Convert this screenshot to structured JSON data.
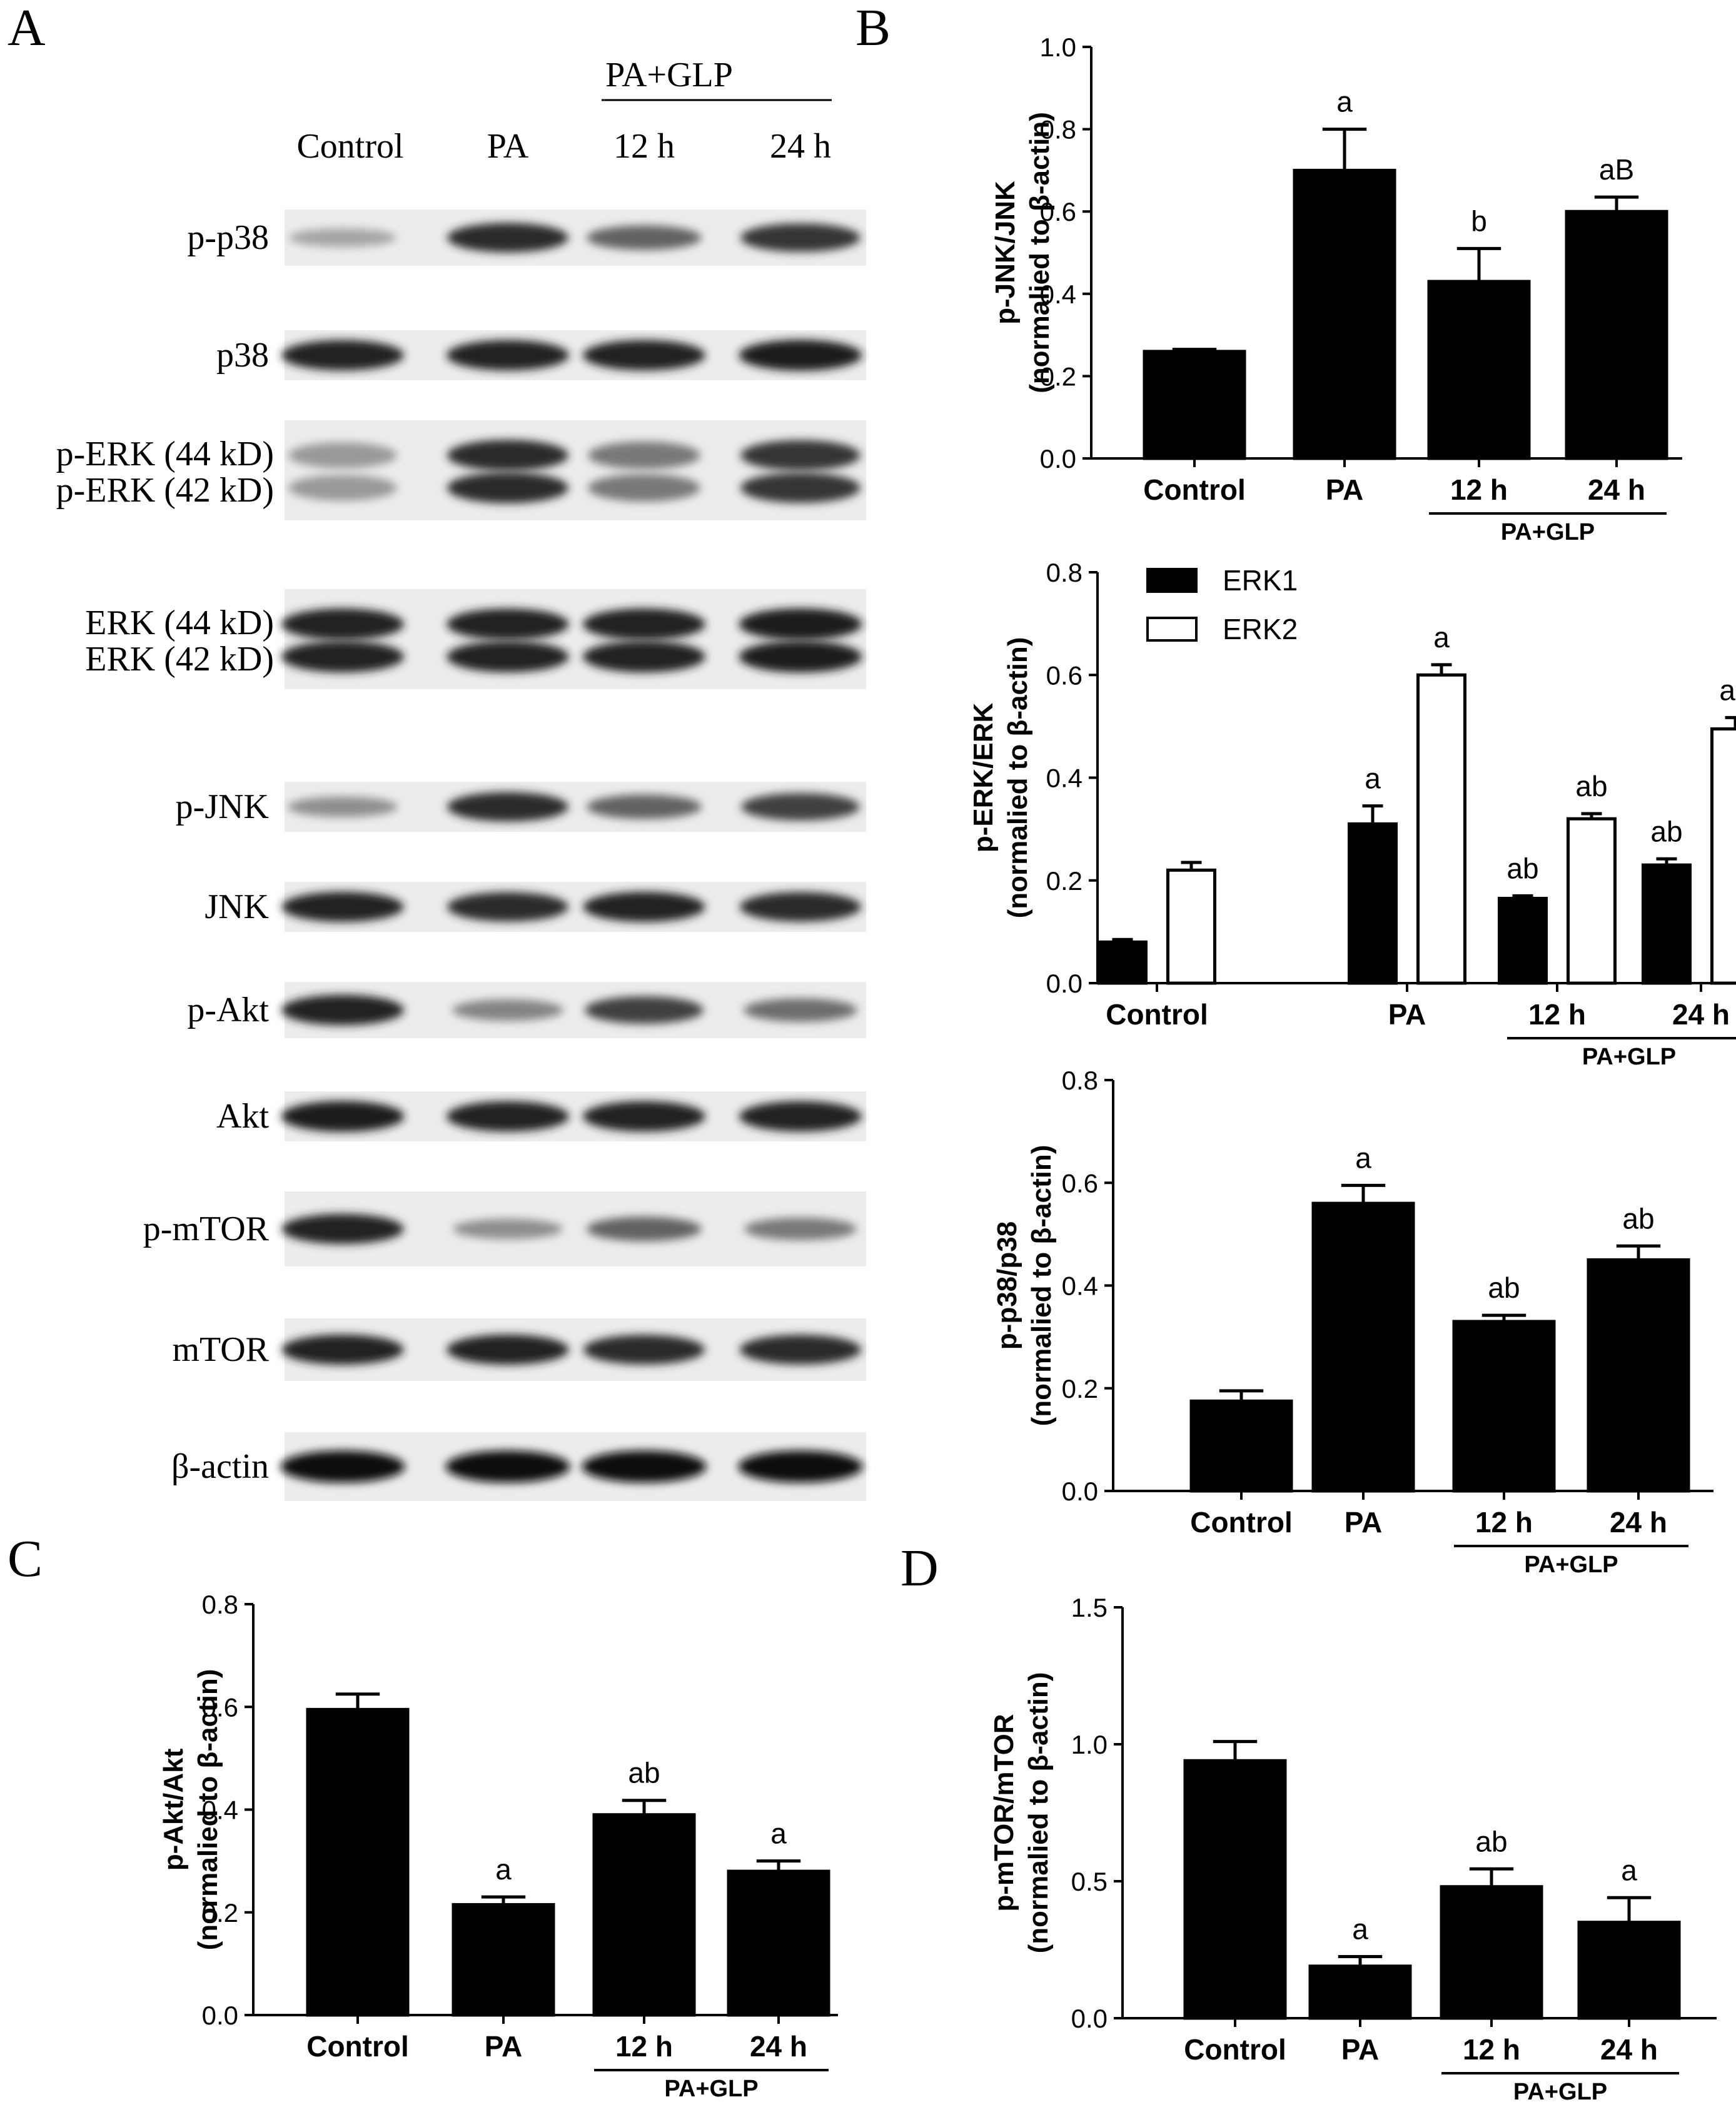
{
  "panels": {
    "A": "A",
    "B": "B",
    "C": "C",
    "D": "D"
  },
  "western_blot": {
    "group_label": "PA+GLP",
    "lanes": [
      "Control",
      "PA",
      "12 h",
      "24 h"
    ],
    "blots": [
      {
        "labels": [
          "p-p38"
        ],
        "intensity": [
          0.3,
          0.85,
          0.6,
          0.8
        ],
        "doublet": false
      },
      {
        "labels": [
          "p38"
        ],
        "intensity": [
          0.9,
          0.9,
          0.9,
          0.92
        ],
        "doublet": false
      },
      {
        "labels": [
          "p-ERK (44 kD)",
          "p-ERK (42 kD)"
        ],
        "intensity": [
          0.35,
          0.85,
          0.5,
          0.8
        ],
        "doublet": true
      },
      {
        "labels": [
          "ERK (44 kD)",
          "ERK (42 kD)"
        ],
        "intensity": [
          0.9,
          0.88,
          0.9,
          0.92
        ],
        "doublet": true
      },
      {
        "labels": [
          "p-JNK"
        ],
        "intensity": [
          0.4,
          0.85,
          0.6,
          0.75
        ],
        "doublet": false
      },
      {
        "labels": [
          "JNK"
        ],
        "intensity": [
          0.88,
          0.85,
          0.88,
          0.86
        ],
        "doublet": false
      },
      {
        "labels": [
          "p-Akt"
        ],
        "intensity": [
          0.9,
          0.45,
          0.75,
          0.55
        ],
        "doublet": false
      },
      {
        "labels": [
          "Akt"
        ],
        "intensity": [
          0.92,
          0.9,
          0.9,
          0.9
        ],
        "doublet": false
      },
      {
        "labels": [
          "p-mTOR"
        ],
        "intensity": [
          0.88,
          0.4,
          0.6,
          0.5
        ],
        "doublet": false
      },
      {
        "labels": [
          "mTOR"
        ],
        "intensity": [
          0.88,
          0.88,
          0.86,
          0.86
        ],
        "doublet": false
      },
      {
        "labels": [
          "β-actin"
        ],
        "intensity": [
          0.98,
          0.98,
          0.98,
          0.98
        ],
        "doublet": false
      }
    ]
  },
  "chart_data": [
    {
      "panel": "B",
      "type": "bar",
      "categories": [
        "Control",
        "PA",
        "12 h",
        "24 h"
      ],
      "group_label": "PA+GLP",
      "ylabel": [
        "p-JNK/JNK",
        "(normalied to β-actin)"
      ],
      "ylim": [
        0,
        1.0
      ],
      "yticks": [
        "0.0",
        "0.2",
        "0.4",
        "0.6",
        "0.8",
        "1.0"
      ],
      "series": [
        {
          "values": [
            0.26,
            0.7,
            0.43,
            0.6
          ],
          "errors": [
            0.005,
            0.1,
            0.08,
            0.035
          ],
          "labels": [
            "",
            "a",
            "b",
            "aB"
          ],
          "fill": "#000000"
        }
      ]
    },
    {
      "panel": "B",
      "type": "bar",
      "categories": [
        "Control",
        "PA",
        "12 h",
        "24 h"
      ],
      "group_label": "PA+GLP",
      "ylabel": [
        "p-ERK/ERK",
        "(normalied to β-actin)"
      ],
      "ylim": [
        0,
        0.8
      ],
      "yticks": [
        "0.0",
        "0.2",
        "0.4",
        "0.6",
        "0.8"
      ],
      "legend": "top-left",
      "series": [
        {
          "name": "ERK1",
          "values": [
            0.08,
            0.31,
            0.165,
            0.23
          ],
          "errors": [
            0.005,
            0.035,
            0.005,
            0.012
          ],
          "labels": [
            "",
            "a",
            "ab",
            "ab"
          ],
          "fill": "#000000"
        },
        {
          "name": "ERK2",
          "values": [
            0.22,
            0.6,
            0.32,
            0.495
          ],
          "errors": [
            0.015,
            0.02,
            0.01,
            0.022
          ],
          "labels": [
            "",
            "a",
            "ab",
            "ab"
          ],
          "fill": "#ffffff"
        }
      ]
    },
    {
      "panel": "B",
      "type": "bar",
      "categories": [
        "Control",
        "PA",
        "12 h",
        "24 h"
      ],
      "group_label": "PA+GLP",
      "ylabel": [
        "p-p38/p38",
        "(normalied to β-actin)"
      ],
      "ylim": [
        0,
        0.8
      ],
      "yticks": [
        "0.0",
        "0.2",
        "0.4",
        "0.6",
        "0.8"
      ],
      "series": [
        {
          "values": [
            0.175,
            0.56,
            0.33,
            0.45
          ],
          "errors": [
            0.02,
            0.035,
            0.012,
            0.027
          ],
          "labels": [
            "",
            "a",
            "ab",
            "ab"
          ],
          "fill": "#000000"
        }
      ]
    },
    {
      "panel": "C",
      "type": "bar",
      "categories": [
        "Control",
        "PA",
        "12 h",
        "24 h"
      ],
      "group_label": "PA+GLP",
      "ylabel": [
        "p-Akt/Akt",
        "(normalied to β-actin)"
      ],
      "ylim": [
        0,
        0.8
      ],
      "yticks": [
        "0.0",
        "0.2",
        "0.4",
        "0.6",
        "0.8"
      ],
      "series": [
        {
          "values": [
            0.595,
            0.215,
            0.39,
            0.28
          ],
          "errors": [
            0.03,
            0.015,
            0.028,
            0.02
          ],
          "labels": [
            "",
            "a",
            "ab",
            "a"
          ],
          "fill": "#000000"
        }
      ]
    },
    {
      "panel": "D",
      "type": "bar",
      "categories": [
        "Control",
        "PA",
        "12 h",
        "24 h"
      ],
      "group_label": "PA+GLP",
      "ylabel": [
        "p-mTOR/mTOR",
        "(normalied to β-actin)"
      ],
      "ylim": [
        0,
        1.5
      ],
      "yticks": [
        "0.0",
        "0.5",
        "1.0",
        "1.5"
      ],
      "series": [
        {
          "values": [
            0.94,
            0.19,
            0.48,
            0.35
          ],
          "errors": [
            0.07,
            0.035,
            0.065,
            0.09
          ],
          "labels": [
            "",
            "a",
            "ab",
            "a"
          ],
          "fill": "#000000"
        }
      ]
    }
  ]
}
